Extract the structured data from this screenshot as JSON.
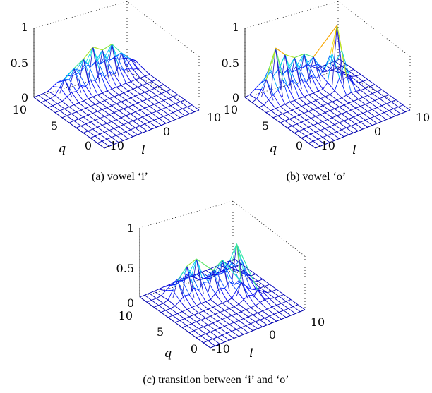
{
  "chart_data": [
    {
      "type": "mesh3d",
      "caption": "(a)  vowel ‘i’",
      "xlabel": "l",
      "ylabel": "q",
      "x_ticks": [
        "-10",
        "0",
        "10"
      ],
      "y_ticks": [
        "0",
        "5",
        "10"
      ],
      "z_ticks": [
        "0",
        "0.5",
        "1"
      ],
      "zlim": [
        0,
        1
      ],
      "grid": false,
      "peaks": [
        {
          "l": -5,
          "q": 9,
          "z": 0.2
        },
        {
          "l": -3,
          "q": 9,
          "z": 0.3
        },
        {
          "l": -1,
          "q": 9,
          "z": 0.38
        },
        {
          "l": 1,
          "q": 9,
          "z": 0.5
        },
        {
          "l": 3,
          "q": 9,
          "z": 0.4
        },
        {
          "l": 5,
          "q": 9,
          "z": 0.43
        },
        {
          "l": 7,
          "q": 9,
          "z": 0.25
        },
        {
          "l": 9,
          "q": 9,
          "z": 0.1
        }
      ]
    },
    {
      "type": "mesh3d",
      "caption": "(b)  vowel ‘o’",
      "xlabel": "l",
      "ylabel": "q",
      "x_ticks": [
        "-10",
        "0",
        "10"
      ],
      "y_ticks": [
        "0",
        "5",
        "10"
      ],
      "z_ticks": [
        "0",
        "0.5",
        "1"
      ],
      "zlim": [
        0,
        1
      ],
      "grid": false,
      "peaks": [
        {
          "l": -7,
          "q": 9,
          "z": 0.25
        },
        {
          "l": -5,
          "q": 9,
          "z": 0.65
        },
        {
          "l": -3,
          "q": 9,
          "z": 0.5
        },
        {
          "l": -1,
          "q": 9,
          "z": 0.4
        },
        {
          "l": 1,
          "q": 9,
          "z": 0.4
        },
        {
          "l": 3,
          "q": 9,
          "z": 0.3
        },
        {
          "l": 5,
          "q": 7,
          "z": 0.85
        },
        {
          "l": 7,
          "q": 7,
          "z": 0.05
        }
      ]
    },
    {
      "type": "mesh3d",
      "caption": "(c)  transition between ‘i’ and ‘o’",
      "xlabel": "l",
      "ylabel": "q",
      "x_ticks": [
        "-10",
        "0",
        "10"
      ],
      "y_ticks": [
        "0",
        "5",
        "10"
      ],
      "z_ticks": [
        "0",
        "0.5",
        "1"
      ],
      "zlim": [
        0,
        1
      ],
      "grid": false,
      "peaks": [
        {
          "l": -5,
          "q": 8,
          "z": 0.25
        },
        {
          "l": -3,
          "q": 8,
          "z": 0.4
        },
        {
          "l": -1,
          "q": 8,
          "z": 0.45
        },
        {
          "l": 1,
          "q": 7,
          "z": 0.3
        },
        {
          "l": 3,
          "q": 7,
          "z": 0.4
        },
        {
          "l": 4,
          "q": 5,
          "z": 0.2
        },
        {
          "l": 6,
          "q": 7,
          "z": 0.55
        },
        {
          "l": 6,
          "q": 4,
          "z": 0.1
        }
      ]
    }
  ]
}
